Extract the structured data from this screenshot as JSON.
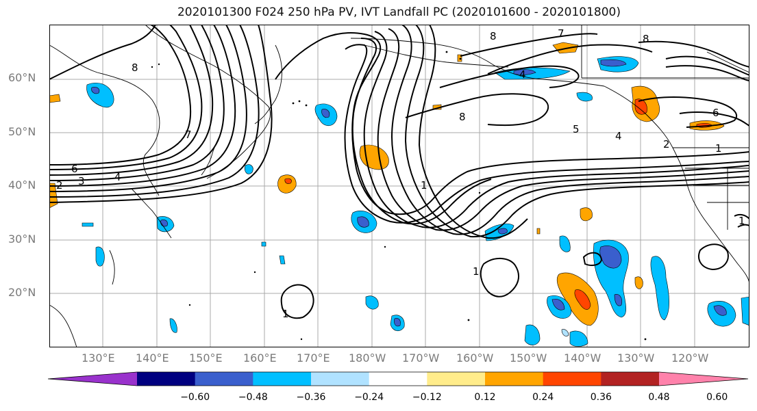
{
  "title": "2020101300 F024 250 hPa PV, IVT Landfall PC (2020101600 - 2020101800)",
  "lat_labels": [
    "60°N",
    "50°N",
    "40°N",
    "30°N",
    "20°N"
  ],
  "lon_labels": [
    "130°E",
    "140°E",
    "150°E",
    "160°E",
    "170°E",
    "180°W",
    "170°W",
    "160°W",
    "150°W",
    "140°W",
    "130°W",
    "120°W"
  ],
  "colorbar": {
    "levels": [
      "−0.60",
      "−0.48",
      "−0.36",
      "−0.24",
      "−0.12",
      "0.12",
      "0.24",
      "0.36",
      "0.48",
      "0.60"
    ],
    "colors": [
      "#9932cc",
      "#000080",
      "#3a5fcd",
      "#00bfff",
      "#b0e2ff",
      "#ffffff",
      "#ffec8b",
      "#ffa500",
      "#ff4500",
      "#b22222",
      "#ff82ab"
    ]
  },
  "pv_contour_labels": [
    "8",
    "6",
    "4",
    "3",
    "2",
    "7",
    "8",
    "4",
    "5",
    "4",
    "2",
    "1",
    "8",
    "8",
    "7",
    "6",
    "1",
    "1",
    "1",
    "1"
  ],
  "colors": {
    "grid": "#a8a8a8",
    "contour": "#000000",
    "coast": "#000000"
  }
}
